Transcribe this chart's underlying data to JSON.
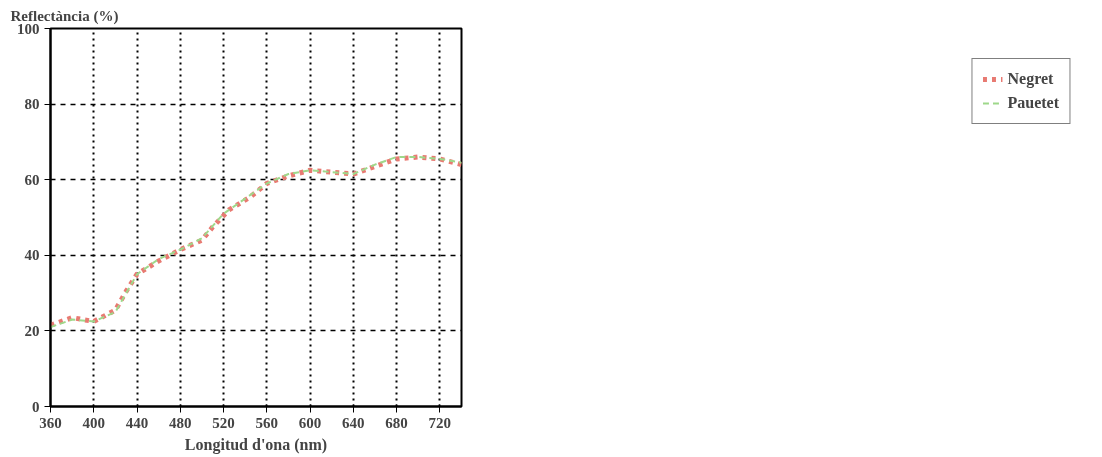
{
  "chart_data": {
    "type": "line",
    "xlabel": "Longitud d'ona (nm)",
    "ylabel": "Reflectància (%)",
    "xlim": [
      360,
      740
    ],
    "ylim": [
      0,
      100
    ],
    "xticks": [
      360,
      400,
      440,
      480,
      520,
      560,
      600,
      640,
      680,
      720
    ],
    "yticks": [
      0,
      20,
      40,
      60,
      80,
      100
    ],
    "grid": true,
    "legend": "right",
    "marker": "none",
    "series": [
      {
        "name": "Negret",
        "color": "#e87a72",
        "line_style": "dotted",
        "x": [
          360,
          380,
          400,
          420,
          430,
          440,
          460,
          480,
          500,
          510,
          525,
          545,
          560,
          580,
          600,
          620,
          640,
          660,
          680,
          700,
          720,
          740
        ],
        "values": [
          21.5,
          23.5,
          22.5,
          25.5,
          30.5,
          35,
          38.5,
          41.5,
          44,
          47.5,
          52,
          55.5,
          59,
          61,
          62.5,
          62,
          61.5,
          63.5,
          65.5,
          66,
          65.5,
          64
        ]
      },
      {
        "name": "Pauetet",
        "color": "#9ed88a",
        "line_style": "dashed",
        "x": [
          360,
          380,
          400,
          420,
          440,
          460,
          480,
          500,
          520,
          540,
          560,
          580,
          600,
          620,
          640,
          660,
          680,
          700,
          720,
          740
        ],
        "values": [
          21,
          23,
          22.5,
          25,
          35,
          39,
          41.5,
          44.5,
          51,
          55,
          59,
          61.5,
          62.5,
          62,
          61.5,
          64,
          66,
          66,
          65.5,
          64.5
        ]
      }
    ]
  }
}
